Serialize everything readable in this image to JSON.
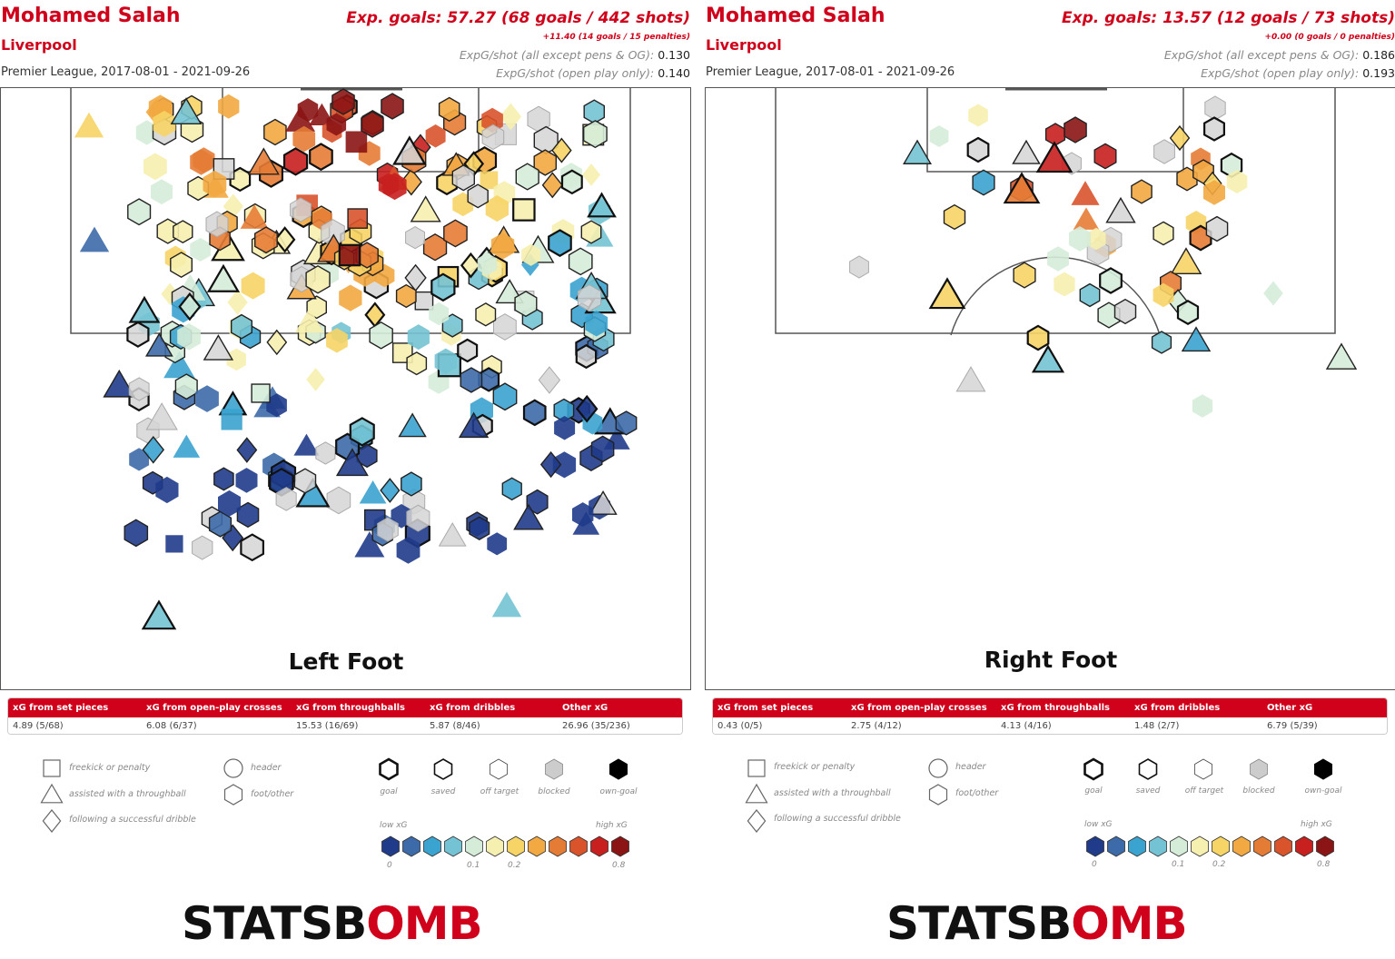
{
  "panels": [
    {
      "player": "Mohamed Salah",
      "team": "Liverpool",
      "league": "Premier League, 2017-08-01 - 2021-09-26",
      "headline": "Exp. goals: 57.27 (68 goals / 442 shots)",
      "penalties": "+11.40 (14 goals / 15 penalties)",
      "stat1_label": "ExpG/shot (all except pens & OG):",
      "stat1_value": "0.130",
      "stat2_label": "ExpG/shot (open play only):",
      "stat2_value": "0.140",
      "foot": "Left Foot",
      "breakdown": {
        "headers": [
          "xG from set pieces",
          "xG from open-play crosses",
          "xG from throughballs",
          "xG from dribbles",
          "Other xG"
        ],
        "values": [
          "4.89 (5/68)",
          "6.08 (6/37)",
          "15.53 (16/69)",
          "5.87 (8/46)",
          "26.96 (35/236)"
        ]
      }
    },
    {
      "player": "Mohamed Salah",
      "team": "Liverpool",
      "league": "Premier League, 2017-08-01 - 2021-09-26",
      "headline": "Exp. goals: 13.57 (12 goals / 73 shots)",
      "penalties": "+0.00 (0 goals / 0 penalties)",
      "stat1_label": "ExpG/shot (all except pens & OG):",
      "stat1_value": "0.186",
      "stat2_label": "ExpG/shot (open play only):",
      "stat2_value": "0.193",
      "foot": "Right Foot",
      "breakdown": {
        "headers": [
          "xG from set pieces",
          "xG from open-play crosses",
          "xG from throughballs",
          "xG from dribbles",
          "Other xG"
        ],
        "values": [
          "0.43 (0/5)",
          "2.75 (4/12)",
          "4.13 (4/16)",
          "1.48 (2/7)",
          "6.79 (5/39)"
        ]
      }
    }
  ],
  "legend": {
    "shape_types": [
      "freekick or penalty",
      "assisted with a throughball",
      "following a successful dribble",
      "header",
      "foot/other"
    ],
    "outcomes": [
      "goal",
      "saved",
      "off target",
      "blocked",
      "own-goal"
    ],
    "low_label": "low xG",
    "high_label": "high xG",
    "scale_ticks": [
      "0",
      "0.1",
      "0.2",
      "0.8"
    ],
    "scale_colors": [
      "#1f3b8a",
      "#3d6aa8",
      "#3ba3cf",
      "#74c3d4",
      "#d5ecd8",
      "#f6f0b0",
      "#f6d466",
      "#f2a941",
      "#e57c35",
      "#d9532b",
      "#c81f1f",
      "#8b1414"
    ]
  },
  "brand": {
    "part1": "STATSB",
    "part2": "MB",
    "mid": "O"
  },
  "chart_data": [
    {
      "type": "scatter",
      "title": "Left Foot",
      "description_of_encoding": "",
      "summary": {
        "xg": 57.27,
        "goals": 68,
        "shots": 442,
        "pen_xg": 11.4,
        "pen_goals": 14,
        "penalties": 15,
        "xg_per_shot": 0.13,
        "xg_per_shot_open_play": 0.14
      },
      "categories": [
        "xG from set pieces",
        "xG from open-play crosses",
        "xG from throughballs",
        "xG from dribbles",
        "Other xG"
      ],
      "values": [
        4.89,
        6.08,
        15.53,
        5.87,
        26.96
      ]
    },
    {
      "type": "scatter",
      "title": "Right Foot",
      "summary": {
        "xg": 13.57,
        "goals": 12,
        "shots": 73,
        "pen_xg": 0.0,
        "pen_goals": 0,
        "penalties": 0,
        "xg_per_shot": 0.186,
        "xg_per_shot_open_play": 0.193
      },
      "categories": [
        "xG from set pieces",
        "xG from open-play crosses",
        "xG from throughballs",
        "xG from dribbles",
        "Other xG"
      ],
      "values": [
        0.43,
        2.75,
        4.13,
        1.48,
        6.79
      ]
    }
  ]
}
